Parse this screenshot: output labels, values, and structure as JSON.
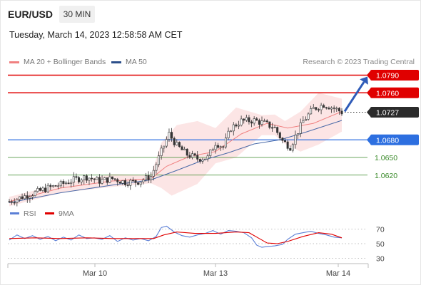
{
  "header": {
    "symbol": "EUR/USD",
    "timeframe": "30 MIN",
    "datetime": "Tuesday, March 14, 2023 12:58:58 AM CET"
  },
  "legend": {
    "items": [
      {
        "label": "MA 20 + Bollinger Bands",
        "color": "#f08080"
      },
      {
        "label": "MA 50",
        "color": "#2c4f8a"
      }
    ],
    "research": "Research © 2023 Trading Central"
  },
  "rsi_legend": {
    "items": [
      {
        "label": "RSI",
        "color": "#5b7fd6"
      },
      {
        "label": "9MA",
        "color": "#e00000"
      }
    ]
  },
  "chart_data": [
    {
      "type": "candlestick",
      "title": "EUR/USD 30 MIN",
      "price_range": [
        1.057,
        1.081
      ],
      "x_ticks": [
        "Mar 10",
        "Mar 13",
        "Mar 14"
      ],
      "levels": [
        {
          "value": "1.0790",
          "price": 1.079,
          "kind": "resistance",
          "color": "#e00000"
        },
        {
          "value": "1.0760",
          "price": 1.076,
          "kind": "resistance",
          "color": "#e00000"
        },
        {
          "value": "1.0727",
          "price": 1.0727,
          "kind": "current",
          "color": "#222222"
        },
        {
          "value": "1.0680",
          "price": 1.068,
          "kind": "pivot",
          "color": "#2d6fe0"
        },
        {
          "value": "1.0650",
          "price": 1.065,
          "kind": "support",
          "color": "#3a8a2a"
        },
        {
          "value": "1.0620",
          "price": 1.062,
          "kind": "support",
          "color": "#3a8a2a"
        }
      ],
      "close_path": [
        [
          0,
          1.0575
        ],
        [
          10,
          1.0583
        ],
        [
          20,
          1.059
        ],
        [
          30,
          1.0598
        ],
        [
          40,
          1.0604
        ],
        [
          50,
          1.0612
        ],
        [
          60,
          1.0617
        ],
        [
          70,
          1.061
        ],
        [
          80,
          1.0614
        ],
        [
          90,
          1.0608
        ],
        [
          100,
          1.0609
        ],
        [
          110,
          1.0618
        ],
        [
          118,
          1.066
        ],
        [
          124,
          1.069
        ],
        [
          130,
          1.067
        ],
        [
          138,
          1.0655
        ],
        [
          146,
          1.0648
        ],
        [
          154,
          1.065
        ],
        [
          160,
          1.0675
        ],
        [
          166,
          1.0668
        ],
        [
          172,
          1.07
        ],
        [
          180,
          1.0712
        ],
        [
          190,
          1.0713
        ],
        [
          198,
          1.0708
        ],
        [
          206,
          1.07
        ],
        [
          212,
          1.0678
        ],
        [
          218,
          1.0668
        ],
        [
          222,
          1.0686
        ],
        [
          228,
          1.0712
        ],
        [
          236,
          1.0733
        ],
        [
          244,
          1.074
        ],
        [
          252,
          1.0734
        ],
        [
          258,
          1.0727
        ]
      ],
      "ma50": [
        [
          0,
          1.0573
        ],
        [
          40,
          1.059
        ],
        [
          80,
          1.0603
        ],
        [
          110,
          1.0612
        ],
        [
          130,
          1.0628
        ],
        [
          150,
          1.0645
        ],
        [
          170,
          1.0658
        ],
        [
          190,
          1.0673
        ],
        [
          210,
          1.068
        ],
        [
          230,
          1.0693
        ],
        [
          258,
          1.0713
        ]
      ],
      "ma20": [
        [
          0,
          1.0575
        ],
        [
          40,
          1.0598
        ],
        [
          80,
          1.061
        ],
        [
          110,
          1.0614
        ],
        [
          122,
          1.0635
        ],
        [
          140,
          1.0652
        ],
        [
          160,
          1.066
        ],
        [
          180,
          1.069
        ],
        [
          200,
          1.0708
        ],
        [
          216,
          1.07
        ],
        [
          236,
          1.0708
        ],
        [
          258,
          1.0728
        ]
      ],
      "bb_upper": [
        [
          0,
          1.0583
        ],
        [
          40,
          1.0605
        ],
        [
          80,
          1.0622
        ],
        [
          110,
          1.062
        ],
        [
          118,
          1.0675
        ],
        [
          130,
          1.0705
        ],
        [
          146,
          1.0712
        ],
        [
          160,
          1.07
        ],
        [
          176,
          1.0735
        ],
        [
          196,
          1.0722
        ],
        [
          206,
          1.0723
        ],
        [
          214,
          1.0712
        ],
        [
          226,
          1.0728
        ],
        [
          240,
          1.076
        ],
        [
          258,
          1.075
        ]
      ],
      "bb_lower": [
        [
          0,
          1.0567
        ],
        [
          40,
          1.059
        ],
        [
          80,
          1.06
        ],
        [
          110,
          1.0606
        ],
        [
          118,
          1.0598
        ],
        [
          126,
          1.0585
        ],
        [
          146,
          1.0605
        ],
        [
          160,
          1.064
        ],
        [
          176,
          1.065
        ],
        [
          196,
          1.0688
        ],
        [
          206,
          1.0688
        ],
        [
          214,
          1.0673
        ],
        [
          226,
          1.066
        ],
        [
          240,
          1.0672
        ],
        [
          258,
          1.0694
        ]
      ],
      "projection": {
        "from": [
          258,
          1.0727
        ],
        "to": [
          279,
          1.079
        ],
        "color": "#2f5bb8"
      }
    },
    {
      "type": "line",
      "title": "RSI",
      "y_ticks": [
        "70",
        "50",
        "30"
      ],
      "ylim": [
        10,
        90
      ],
      "series": [
        {
          "name": "RSI",
          "color": "#5b7fd6",
          "points": [
            [
              0,
              55
            ],
            [
              6,
              62
            ],
            [
              12,
              57
            ],
            [
              18,
              61
            ],
            [
              24,
              56
            ],
            [
              30,
              60
            ],
            [
              36,
              54
            ],
            [
              42,
              59
            ],
            [
              48,
              55
            ],
            [
              54,
              62
            ],
            [
              60,
              57
            ],
            [
              66,
              58
            ],
            [
              72,
              56
            ],
            [
              78,
              61
            ],
            [
              84,
              53
            ],
            [
              90,
              58
            ],
            [
              96,
              55
            ],
            [
              102,
              57
            ],
            [
              108,
              54
            ],
            [
              114,
              60
            ],
            [
              118,
              72
            ],
            [
              122,
              74
            ],
            [
              128,
              66
            ],
            [
              134,
              61
            ],
            [
              140,
              59
            ],
            [
              146,
              62
            ],
            [
              152,
              64
            ],
            [
              158,
              68
            ],
            [
              164,
              63
            ],
            [
              170,
              68
            ],
            [
              176,
              67
            ],
            [
              182,
              65
            ],
            [
              188,
              58
            ],
            [
              192,
              48
            ],
            [
              196,
              45
            ],
            [
              200,
              46
            ],
            [
              206,
              47
            ],
            [
              212,
              49
            ],
            [
              216,
              56
            ],
            [
              222,
              63
            ],
            [
              228,
              65
            ],
            [
              234,
              67
            ],
            [
              240,
              64
            ],
            [
              246,
              62
            ],
            [
              252,
              59
            ],
            [
              258,
              58
            ]
          ]
        },
        {
          "name": "9MA",
          "color": "#e00000",
          "points": [
            [
              0,
              57
            ],
            [
              20,
              58
            ],
            [
              40,
              57
            ],
            [
              60,
              58
            ],
            [
              80,
              57
            ],
            [
              100,
              57
            ],
            [
              112,
              57
            ],
            [
              120,
              62
            ],
            [
              130,
              66
            ],
            [
              144,
              64
            ],
            [
              160,
              64
            ],
            [
              176,
              66
            ],
            [
              186,
              65
            ],
            [
              194,
              57
            ],
            [
              200,
              51
            ],
            [
              208,
              50
            ],
            [
              216,
              53
            ],
            [
              228,
              60
            ],
            [
              240,
              65
            ],
            [
              250,
              63
            ],
            [
              258,
              58
            ]
          ]
        }
      ]
    }
  ]
}
